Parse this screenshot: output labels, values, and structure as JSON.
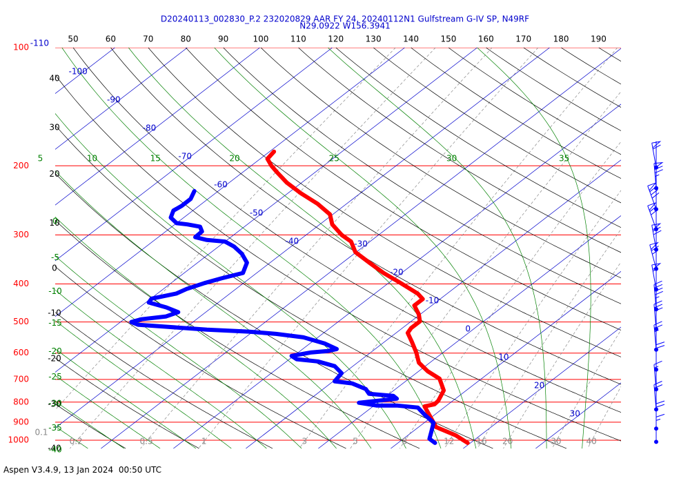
{
  "chart_data": {
    "type": "skewt",
    "title": "D20240113_002830_P.2 232020829 AAR FY 24, 20240112N1 Gulfstream G-IV SP, N49RF",
    "subtitle": "N29.0922 W156.3941",
    "log_scale": true,
    "ylim": [
      100,
      1050
    ],
    "yticks": [
      100,
      200,
      300,
      400,
      500,
      600,
      700,
      800,
      900,
      1000
    ],
    "isotherms": [
      -110,
      -100,
      -90,
      -80,
      -70,
      -60,
      -50,
      -40,
      -30,
      -20,
      -10,
      0,
      10,
      20,
      30
    ],
    "dry_adiabats": [
      -40,
      -30,
      -20,
      -10,
      0,
      10,
      20,
      30,
      40,
      50,
      60,
      70,
      80,
      90,
      100,
      110,
      120,
      130,
      140,
      150,
      160,
      170,
      180,
      190
    ],
    "moist_adiabats": [
      -40,
      -35,
      -30,
      -25,
      -20,
      -15,
      -10,
      -5,
      0,
      5,
      10,
      15,
      20,
      25,
      30,
      35
    ],
    "mixing_ratios": [
      0.1,
      0.2,
      0.5,
      1,
      3,
      5,
      8,
      12,
      16,
      20,
      30,
      40
    ],
    "series": [
      {
        "color": "#ff0000",
        "pressure": [
          184,
          192,
          200,
          208,
          221,
          235,
          250,
          266,
          282,
          300,
          312,
          332,
          353,
          375,
          398,
          423,
          437,
          454,
          478,
          498,
          518,
          533,
          562,
          598,
          635,
          667,
          697,
          747,
          794,
          810,
          820,
          926,
          972,
          1016
        ],
        "values": [
          -59.4,
          -59.0,
          -57.2,
          -55.2,
          -52.0,
          -48.2,
          -44.0,
          -40.4,
          -38.3,
          -35.1,
          -32.6,
          -30.1,
          -26.3,
          -22.5,
          -18.3,
          -14.1,
          -12.4,
          -12.4,
          -10.2,
          -8.8,
          -8.8,
          -8.4,
          -6.2,
          -3.7,
          -1.5,
          1.2,
          4.2,
          6.9,
          8.0,
          8.1,
          7.1,
          12.4,
          16.6,
          19.6
        ]
      },
      {
        "color": "#0000ff",
        "pressure": [
          232,
          243,
          253,
          260,
          271,
          280,
          282,
          286,
          294,
          304,
          309,
          312,
          321,
          335,
          353,
          375,
          387,
          398,
          412,
          423,
          436,
          446,
          459,
          472,
          484,
          492,
          500,
          508,
          514,
          523,
          529,
          536,
          547,
          567,
          586,
          593,
          598,
          610,
          622,
          630,
          648,
          675,
          708,
          717,
          741,
          762,
          771,
          784,
          803,
          816,
          816,
          826,
          861,
          903,
          952,
          992,
          1016
        ],
        "values": [
          -63.3,
          -62.4,
          -62.4,
          -62.7,
          -61.8,
          -60.0,
          -58.3,
          -56.1,
          -55.0,
          -54.9,
          -52.8,
          -50.0,
          -47.9,
          -45.5,
          -43.2,
          -41.9,
          -43.9,
          -45.4,
          -46.8,
          -47.4,
          -49.9,
          -49.6,
          -46.3,
          -43.8,
          -44.7,
          -47.6,
          -48.5,
          -47.1,
          -42.9,
          -36.7,
          -30.6,
          -26.4,
          -22.0,
          -18.0,
          -15.3,
          -16.2,
          -18.3,
          -20.3,
          -19.0,
          -15.7,
          -12.5,
          -10.3,
          -9.8,
          -7.0,
          -4.1,
          -2.8,
          0.9,
          1.9,
          -2.6,
          0.3,
          3.1,
          6.4,
          8.6,
          11.3,
          12.6,
          13.6,
          15.1
        ]
      }
    ],
    "wind": {
      "pressure": [
        202,
        228,
        258,
        290,
        327,
        366,
        413,
        464,
        521,
        588,
        661,
        742,
        835,
        934,
        1010
      ],
      "speed": [
        60,
        75,
        80,
        70,
        70,
        65,
        55,
        45,
        30,
        25,
        20,
        15,
        20,
        20,
        15
      ],
      "direction": [
        350,
        355,
        340,
        340,
        350,
        345,
        350,
        355,
        355,
        355,
        0,
        355,
        355,
        0,
        0
      ]
    }
  },
  "footer": "Aspen V3.4.9, 13 Jan 2024  00:50 UTC"
}
